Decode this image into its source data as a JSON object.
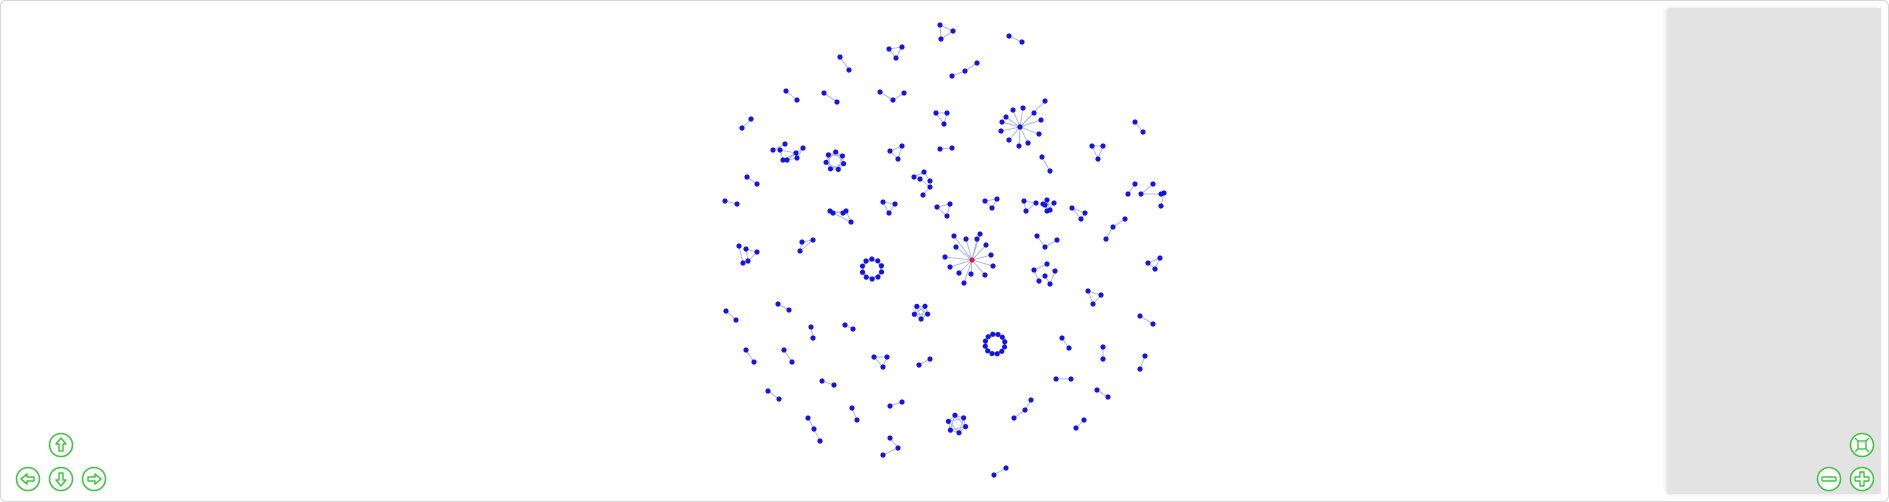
{
  "colors": {
    "node": "#1414e6",
    "selected_node": "#e6193c",
    "edge": "#9aa6e6",
    "button": "#3fc43f",
    "panel": "#e3e3e3"
  },
  "graph": {
    "selected_node_id": "n0",
    "clusters": [
      {
        "kind": "star",
        "hub": "n0",
        "size": 15
      },
      {
        "kind": "star",
        "size": 13
      },
      {
        "kind": "ring",
        "size": 12
      },
      {
        "kind": "ring",
        "size": 10
      },
      {
        "kind": "ring",
        "size": 7
      },
      {
        "kind": "ring",
        "size": 6
      },
      {
        "kind": "ring",
        "size": 5
      },
      {
        "kind": "triangle",
        "count": 20
      },
      {
        "kind": "chain3",
        "count": 12
      },
      {
        "kind": "pair",
        "count": 34
      }
    ]
  },
  "navigation": {
    "icons": [
      "arrow-up-icon",
      "arrow-left-icon",
      "arrow-down-icon",
      "arrow-right-icon"
    ]
  },
  "zoom_controls": {
    "icons": [
      "zoom-extent-icon",
      "zoom-out-icon",
      "zoom-in-icon"
    ]
  }
}
